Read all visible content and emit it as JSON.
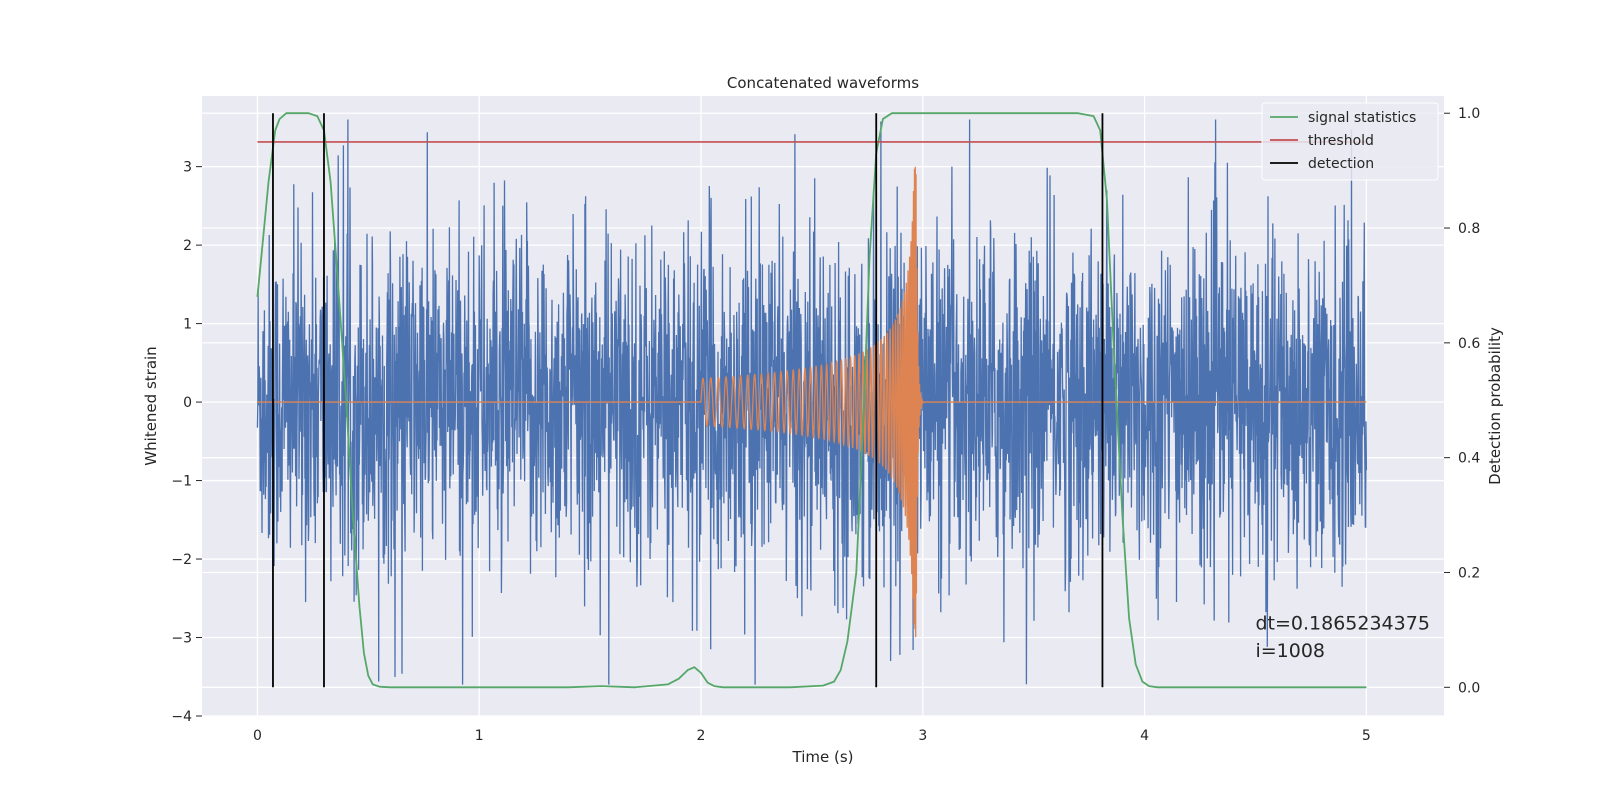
{
  "chart_data": {
    "type": "line",
    "title": "Concatenated waveforms",
    "xlabel": "Time (s)",
    "ylabel": "Whitened strain",
    "y2label": "Detection probability",
    "xlim": [
      -0.25,
      5.35
    ],
    "ylim": [
      -4.0,
      3.9
    ],
    "y2lim": [
      -0.05,
      1.03
    ],
    "x_ticks": [
      0,
      1,
      2,
      3,
      4,
      5
    ],
    "x_tick_labels": [
      "0",
      "1",
      "2",
      "3",
      "4",
      "5"
    ],
    "y_ticks": [
      -4,
      -3,
      -2,
      -1,
      0,
      1,
      2,
      3
    ],
    "y_tick_labels": [
      "−4",
      "−3",
      "−2",
      "−1",
      "0",
      "1",
      "2",
      "3"
    ],
    "y2_ticks": [
      0.0,
      0.2,
      0.4,
      0.6,
      0.8,
      1.0
    ],
    "y2_tick_labels": [
      "0.0",
      "0.2",
      "0.4",
      "0.6",
      "0.8",
      "1.0"
    ],
    "grid": true,
    "legend_position": "top-right",
    "background": "#eaeaf2",
    "series": [
      {
        "name": "",
        "kind": "noise",
        "axis": "left",
        "color": "#4c72b0",
        "x_range": [
          0,
          5
        ],
        "sigma": 1.0,
        "peak_range": [
          -3.6,
          3.6
        ]
      },
      {
        "name": "",
        "kind": "chirp",
        "axis": "left",
        "color": "#dd8452",
        "x_range": [
          0,
          5
        ],
        "chirp_start": 2.0,
        "merger": 2.97,
        "ringdown_end": 3.0,
        "amp_start": 0.3,
        "amp_peak": 3.0
      },
      {
        "name": "signal statistics",
        "kind": "line",
        "axis": "right",
        "color": "#55a868",
        "x": [
          0.0,
          0.02,
          0.05,
          0.08,
          0.1,
          0.13,
          0.17,
          0.23,
          0.27,
          0.3,
          0.33,
          0.36,
          0.4,
          0.43,
          0.46,
          0.48,
          0.5,
          0.52,
          0.55,
          0.6,
          0.8,
          1.0,
          1.2,
          1.4,
          1.55,
          1.7,
          1.85,
          1.9,
          1.94,
          1.97,
          2.0,
          2.03,
          2.06,
          2.1,
          2.2,
          2.4,
          2.55,
          2.6,
          2.63,
          2.66,
          2.7,
          2.73,
          2.76,
          2.79,
          2.82,
          2.86,
          2.95,
          3.2,
          3.5,
          3.7,
          3.77,
          3.8,
          3.83,
          3.86,
          3.9,
          3.93,
          3.96,
          3.99,
          4.02,
          4.06,
          4.2,
          4.6,
          5.0
        ],
        "values": [
          0.68,
          0.76,
          0.88,
          0.97,
          0.99,
          1.0,
          1.0,
          1.0,
          0.995,
          0.97,
          0.88,
          0.72,
          0.5,
          0.3,
          0.14,
          0.06,
          0.02,
          0.005,
          0.001,
          0.0,
          0.0,
          0.0,
          0.0,
          0.0,
          0.002,
          0.0,
          0.005,
          0.015,
          0.03,
          0.035,
          0.025,
          0.008,
          0.002,
          0.0,
          0.0,
          0.0,
          0.003,
          0.01,
          0.03,
          0.08,
          0.2,
          0.45,
          0.75,
          0.93,
          0.99,
          1.0,
          1.0,
          1.0,
          1.0,
          1.0,
          0.995,
          0.97,
          0.85,
          0.6,
          0.3,
          0.12,
          0.04,
          0.01,
          0.002,
          0.0,
          0.0,
          0.0,
          0.0
        ]
      },
      {
        "name": "threshold",
        "kind": "hline",
        "axis": "right",
        "color": "#c44e52",
        "x_range": [
          0,
          5
        ],
        "value": 0.95
      },
      {
        "name": "detection",
        "kind": "vlines",
        "axis": "right",
        "color": "#000000",
        "x": [
          0.07,
          0.3,
          2.79,
          3.81
        ],
        "ymin": 0.0,
        "ymax": 1.0
      }
    ],
    "annotations": [
      {
        "text": "dt=0.1865234375",
        "x": 4.5,
        "y": -2.9
      },
      {
        "text": " i=1008",
        "x": 4.5,
        "y": -3.25
      }
    ]
  }
}
